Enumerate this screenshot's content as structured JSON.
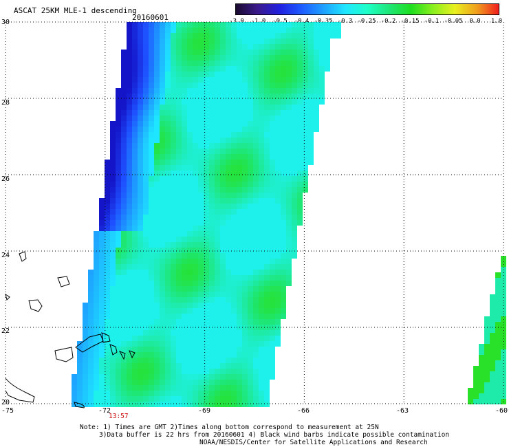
{
  "title": {
    "product": "ASCAT 25KM MLE-1 descending",
    "date": "20160601"
  },
  "colorbar": {
    "labels": [
      "-3.0",
      "-1.0",
      "-0.5",
      "-0.4",
      "-0.35",
      "-0.3",
      "-0.25",
      "-0.2",
      "-0.15",
      "-0.1",
      "-0.05",
      "0.0",
      "1.0"
    ],
    "colors": [
      "#1a0a2e",
      "#3a1a8c",
      "#2020e0",
      "#1e5bff",
      "#1ea0ff",
      "#1ee6ff",
      "#1effc8",
      "#1ee678",
      "#1ede1e",
      "#8aef1e",
      "#e8f01e",
      "#f0a01e",
      "#f01e1e"
    ]
  },
  "axes": {
    "lon_labels": [
      "-75",
      "-72",
      "-69",
      "-66",
      "-63",
      "-60"
    ],
    "lat_labels": [
      "30",
      "28",
      "26",
      "24",
      "22",
      "20"
    ],
    "lon_values": [
      -75,
      -72,
      -69,
      -66,
      -63,
      -60
    ],
    "lat_values": [
      30,
      28,
      26,
      24,
      22,
      20
    ],
    "lon_range": [
      -75,
      -60
    ],
    "lat_range": [
      20,
      30
    ]
  },
  "pass_time": "13:57",
  "notes": [
    "Note: 1) Times are GMT 2)Times along bottom correspond to measurement at 25N",
    "3)Data buffer is 22 hrs from 20160601 4) Black wind barbs indicate possible contamination",
    "NOAA/NESDIS/Center for Satellite Applications and Research"
  ],
  "colors": {
    "pass_time": "#cc0000",
    "grid": "#000000",
    "coast": "#000000"
  }
}
